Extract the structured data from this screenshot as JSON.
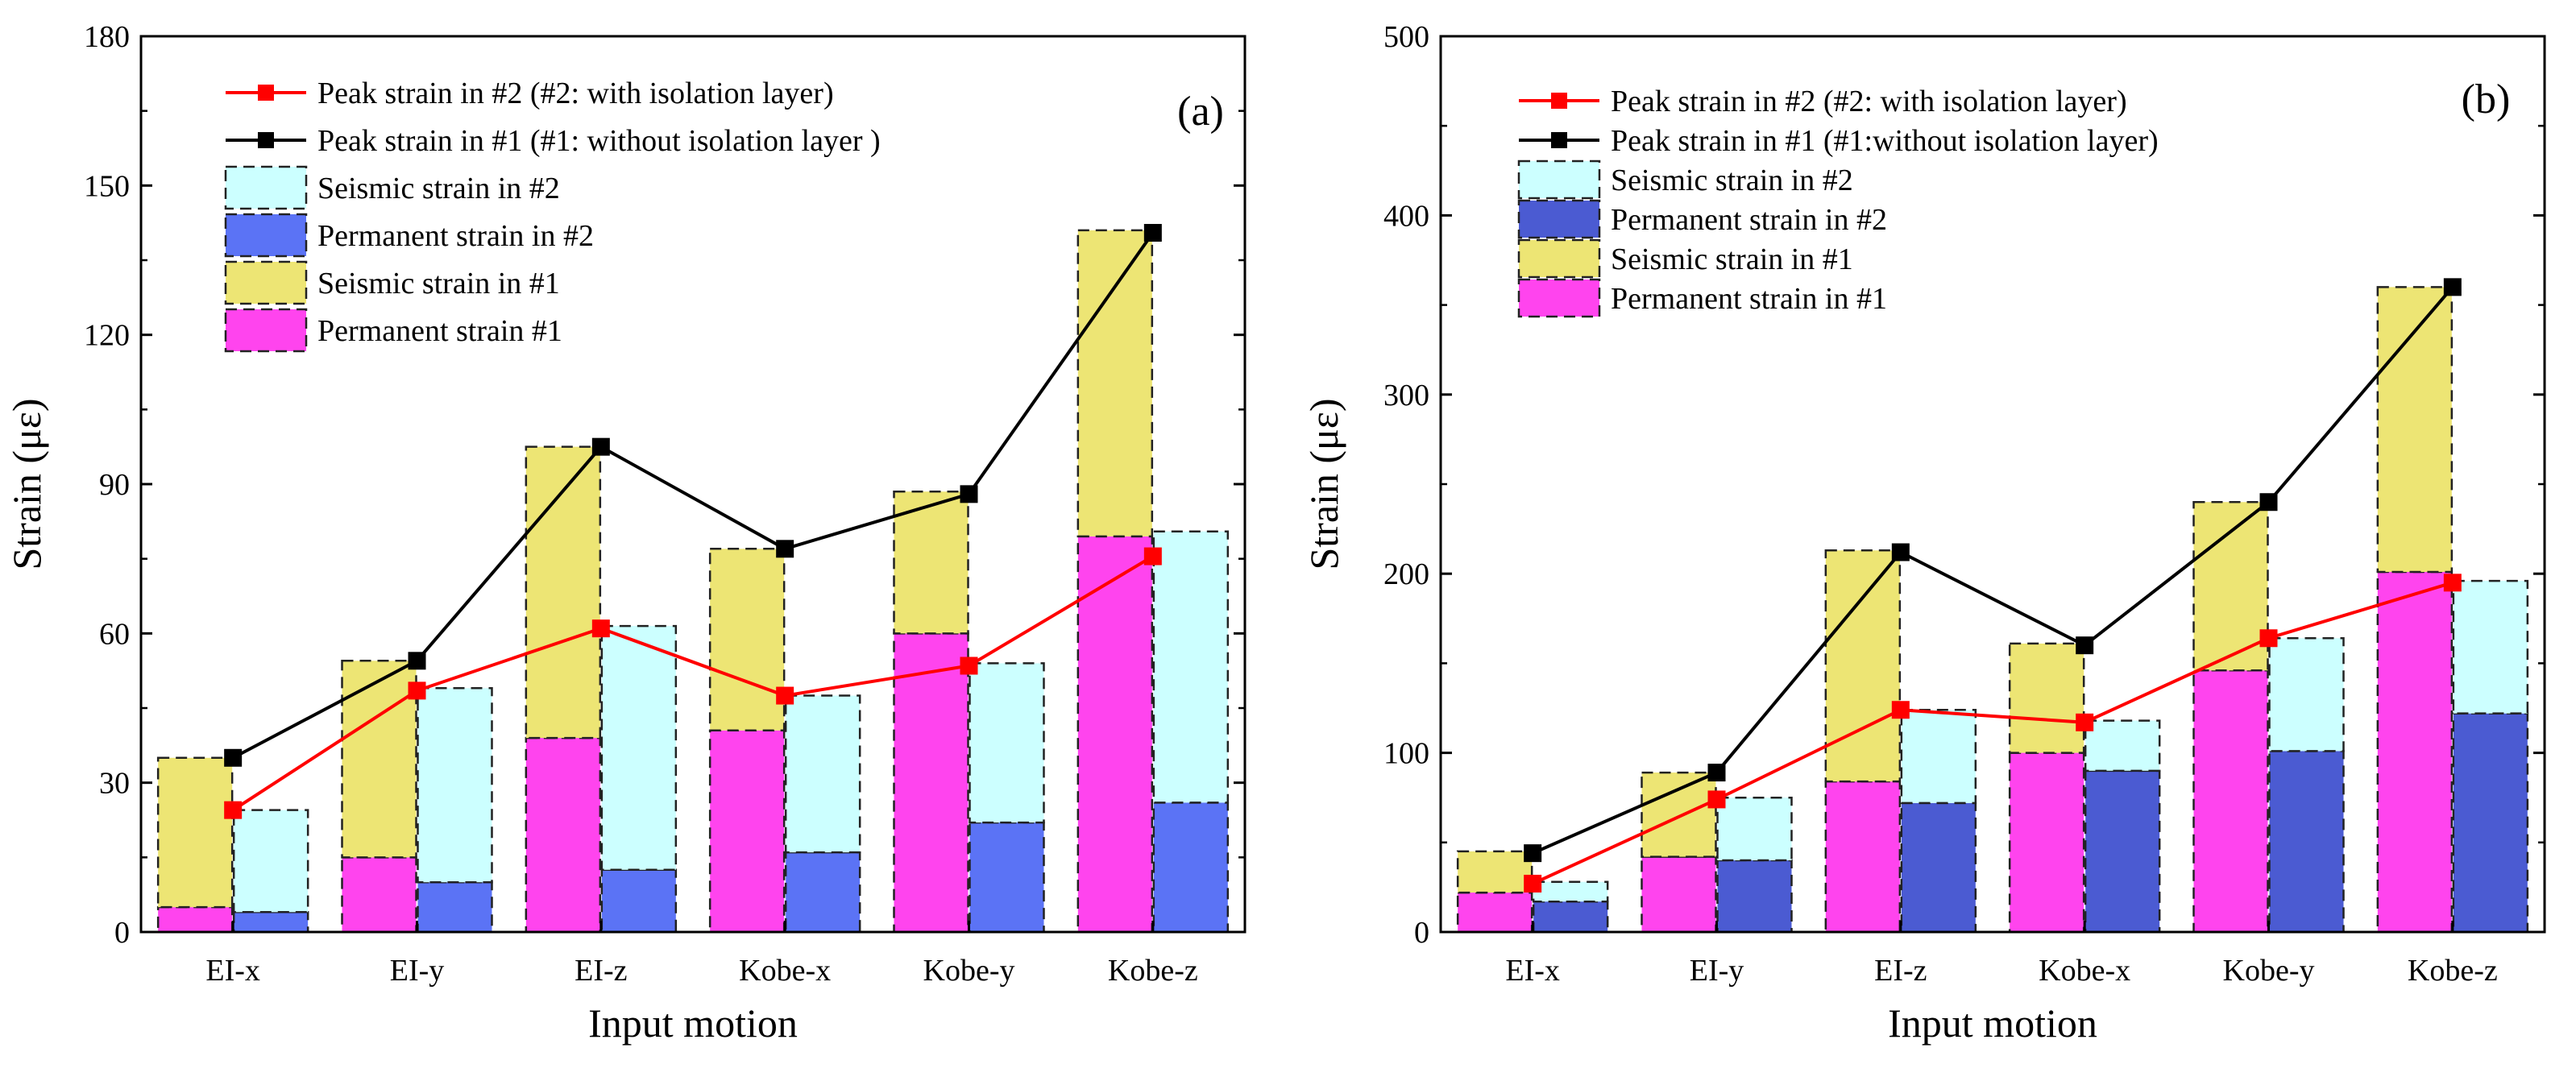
{
  "colors": {
    "peak2": "#ff0000",
    "peak1": "#000000",
    "seismic2": "#ccffff",
    "permanent2_a": "#5b73f5",
    "permanent2_b": "#4b5bd2",
    "seismic1": "#ede574",
    "permanent1": "#ff44ee"
  },
  "chart_data": [
    {
      "type": "bar",
      "panel_label": "(a)",
      "stacked": true,
      "xlabel": "Input motion",
      "ylabel": "Strain (με)",
      "ylim": [
        0,
        180
      ],
      "yticks": [
        "0",
        "30",
        "60",
        "90",
        "120",
        "150",
        "180"
      ],
      "categories": [
        "EI-x",
        "EI-y",
        "EI-z",
        "Kobe-x",
        "Kobe-y",
        "Kobe-z"
      ],
      "bars": {
        "permanent1": [
          5,
          15,
          39,
          40.5,
          60,
          79.5
        ],
        "seismic1": [
          30,
          39.5,
          58.5,
          36.5,
          28.5,
          61.5
        ],
        "permanent2": [
          4,
          10,
          12.5,
          16,
          22,
          26
        ],
        "seismic2": [
          20.5,
          39,
          49,
          31.5,
          32,
          54.5
        ]
      },
      "lines": {
        "peak2": [
          24.5,
          48.5,
          61,
          47.5,
          53.5,
          75.5
        ],
        "peak1": [
          35,
          54.5,
          97.5,
          77,
          88,
          140.5
        ]
      },
      "legend": [
        {
          "key": "peak2",
          "kind": "line",
          "label": "Peak strain in #2 (#2: with isolation layer)"
        },
        {
          "key": "peak1",
          "kind": "line",
          "label": "Peak strain in #1 (#1: without isolation layer )"
        },
        {
          "key": "seismic2",
          "kind": "box",
          "label": "Seismic strain in #2"
        },
        {
          "key": "permanent2",
          "kind": "box",
          "label": "Permanent strain in #2"
        },
        {
          "key": "seismic1",
          "kind": "box",
          "label": "Seismic strain in #1"
        },
        {
          "key": "permanent1",
          "kind": "box",
          "label": "Permanent strain #1"
        }
      ]
    },
    {
      "type": "bar",
      "panel_label": "(b)",
      "stacked": true,
      "xlabel": "Input motion",
      "ylabel": "Strain (με)",
      "ylim": [
        0,
        500
      ],
      "yticks": [
        "0",
        "100",
        "200",
        "300",
        "400",
        "500"
      ],
      "categories": [
        "EI-x",
        "EI-y",
        "EI-z",
        "Kobe-x",
        "Kobe-y",
        "Kobe-z"
      ],
      "bars": {
        "permanent1": [
          22,
          42,
          84,
          100,
          146,
          201
        ],
        "seismic1": [
          23,
          47,
          129,
          61,
          94,
          159
        ],
        "permanent2": [
          17,
          40,
          72,
          90,
          101,
          122
        ],
        "seismic2": [
          11,
          35,
          52,
          28,
          63,
          74
        ]
      },
      "lines": {
        "peak2": [
          27,
          74,
          124,
          117,
          164,
          195
        ],
        "peak1": [
          44,
          89,
          212,
          160,
          240,
          360
        ]
      },
      "legend": [
        {
          "key": "peak2",
          "kind": "line",
          "label": "Peak strain in #2 (#2: with isolation layer)"
        },
        {
          "key": "peak1",
          "kind": "line",
          "label": "Peak strain in #1 (#1:without isolation layer)"
        },
        {
          "key": "seismic2",
          "kind": "box",
          "label": "Seismic strain in #2"
        },
        {
          "key": "permanent2",
          "kind": "box",
          "label": "Permanent strain in #2"
        },
        {
          "key": "seismic1",
          "kind": "box",
          "label": "Seismic strain in #1"
        },
        {
          "key": "permanent1",
          "kind": "box",
          "label": "Permanent strain in #1"
        }
      ]
    }
  ]
}
